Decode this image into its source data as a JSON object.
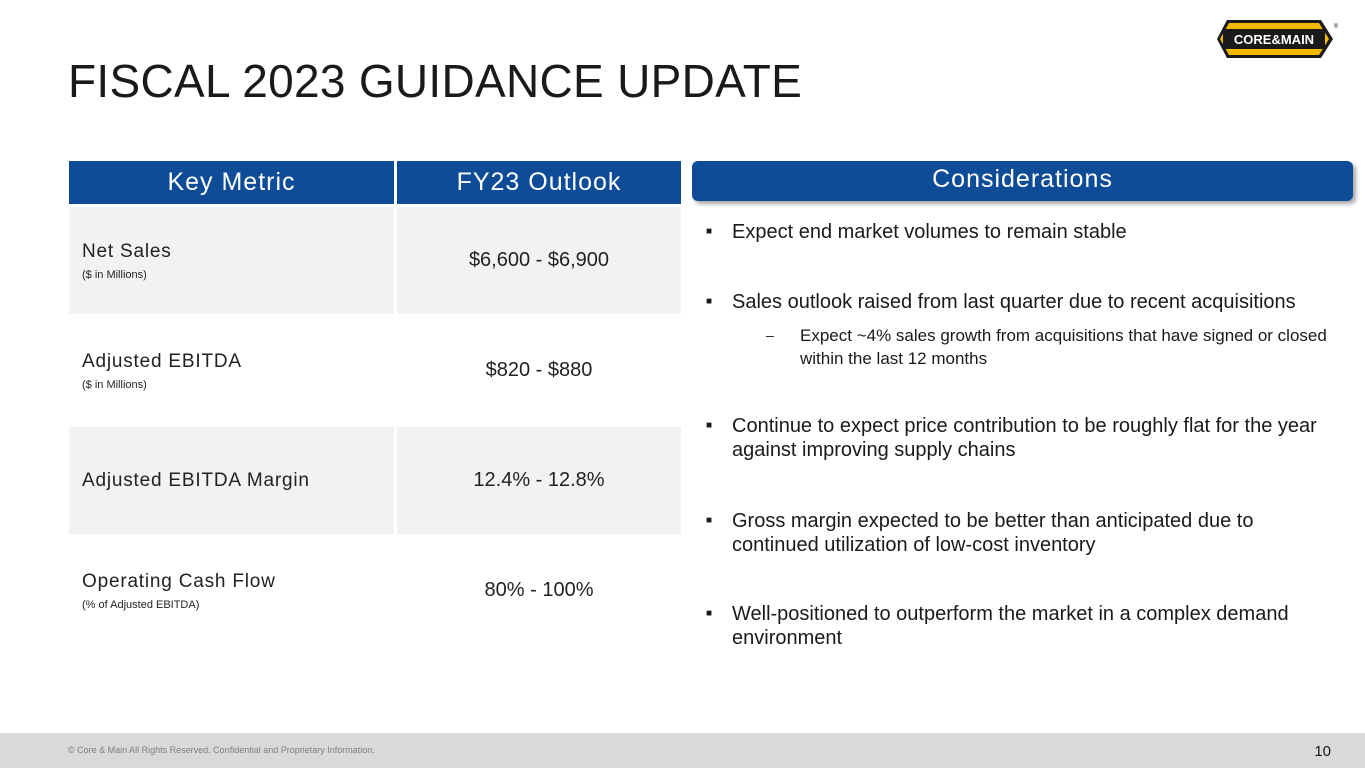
{
  "title": "FISCAL 2023 GUIDANCE UPDATE",
  "logo": {
    "text": "CORE&MAIN",
    "registered": "®",
    "colors": {
      "fill": "#f5b800",
      "outline": "#1a1a1a",
      "text": "#ffffff"
    }
  },
  "table": {
    "headers": [
      "Key Metric",
      "FY23 Outlook"
    ],
    "rows": [
      {
        "metric": "Net Sales",
        "sub": "($ in Millions)",
        "value": "$6,600 - $6,900"
      },
      {
        "metric": "Adjusted EBITDA",
        "sub": "($ in Millions)",
        "value": "$820 - $880"
      },
      {
        "metric": "Adjusted EBITDA Margin",
        "sub": "",
        "value": "12.4% - 12.8%"
      },
      {
        "metric": "Operating Cash Flow",
        "sub": "(% of Adjusted EBITDA)",
        "value": "80% - 100%"
      }
    ]
  },
  "considerations": {
    "header": "Considerations",
    "bullet_marker": "■",
    "sub_marker": "–",
    "items": [
      "Expect end market volumes to remain stable",
      "Sales outlook raised from last quarter due to recent acquisitions",
      "Continue to expect price contribution to be roughly flat for the year against improving supply chains",
      "Gross margin expected to be better than anticipated due to continued utilization of low-cost inventory",
      "Well-positioned to outperform the market in a complex demand environment"
    ],
    "sub_items": [
      "Expect ~4% sales growth from acquisitions that have signed or closed within the last 12 months"
    ]
  },
  "footer": {
    "text": "© Core & Main  All Rights Reserved. Confidential and Proprietary Information.",
    "page_number": "10"
  },
  "colors": {
    "header_blue": "#0f4c97",
    "row_shade": "#f2f2f2",
    "footer_bg": "#d9d9d9"
  }
}
